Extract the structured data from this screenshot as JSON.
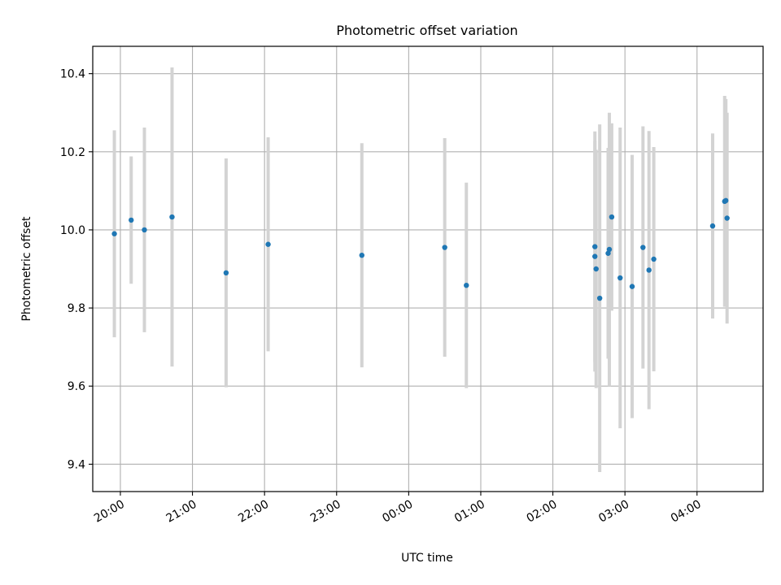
{
  "chart_data": {
    "type": "scatter",
    "title": "Photometric offset variation",
    "xlabel": "UTC time",
    "ylabel": "Photometric offset",
    "x_axis": {
      "kind": "time",
      "range": [
        "19:37",
        "04:55"
      ],
      "ticks": [
        "20:00",
        "21:00",
        "22:00",
        "23:00",
        "00:00",
        "01:00",
        "02:00",
        "03:00",
        "04:00"
      ]
    },
    "ylim": [
      9.33,
      10.47
    ],
    "yticks": [
      "9.4",
      "9.6",
      "9.8",
      "10.0",
      "10.2",
      "10.4"
    ],
    "grid": true,
    "colors": {
      "points": "#1f77b4",
      "errorbars": "#d3d3d3",
      "grid": "#b0b0b0"
    },
    "series": [
      {
        "points": [
          {
            "x": "19:55",
            "y": 9.99,
            "err": 0.265
          },
          {
            "x": "20:09",
            "y": 10.025,
            "err": 0.163
          },
          {
            "x": "20:20",
            "y": 10.0,
            "err": 0.262
          },
          {
            "x": "20:43",
            "y": 10.033,
            "err": 0.383
          },
          {
            "x": "21:28",
            "y": 9.89,
            "err": 0.293
          },
          {
            "x": "22:03",
            "y": 9.963,
            "err": 0.274
          },
          {
            "x": "23:21",
            "y": 9.935,
            "err": 0.287
          },
          {
            "x": "00:30",
            "y": 9.955,
            "err": 0.28
          },
          {
            "x": "00:48",
            "y": 9.858,
            "err": 0.263
          },
          {
            "x": "02:35",
            "y": 9.957,
            "err": 0.295
          },
          {
            "x": "02:35",
            "y": 9.932,
            "err": 0.295
          },
          {
            "x": "02:36",
            "y": 9.9,
            "err": 0.305
          },
          {
            "x": "02:39",
            "y": 9.825,
            "err": 0.445
          },
          {
            "x": "02:46",
            "y": 9.94,
            "err": 0.27
          },
          {
            "x": "02:47",
            "y": 9.95,
            "err": 0.35
          },
          {
            "x": "02:49",
            "y": 10.033,
            "err": 0.24
          },
          {
            "x": "02:56",
            "y": 9.877,
            "err": 0.385
          },
          {
            "x": "03:06",
            "y": 9.855,
            "err": 0.337
          },
          {
            "x": "03:15",
            "y": 9.955,
            "err": 0.31
          },
          {
            "x": "03:20",
            "y": 9.897,
            "err": 0.356
          },
          {
            "x": "03:24",
            "y": 9.925,
            "err": 0.287
          },
          {
            "x": "04:13",
            "y": 10.01,
            "err": 0.237
          },
          {
            "x": "04:23",
            "y": 10.073,
            "err": 0.27
          },
          {
            "x": "04:24",
            "y": 10.075,
            "err": 0.26
          },
          {
            "x": "04:25",
            "y": 10.03,
            "err": 0.27
          }
        ]
      }
    ]
  }
}
